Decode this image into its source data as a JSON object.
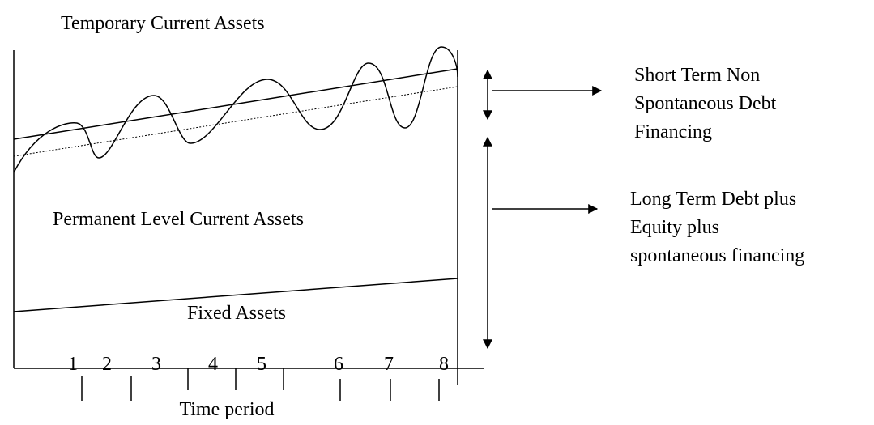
{
  "title": "Temporary Current Assets",
  "regions": {
    "permanent": "Permanent Level Current Assets",
    "fixed": "Fixed Assets"
  },
  "x_axis": {
    "labels": [
      "1",
      "2",
      "3",
      "4",
      "5",
      "6",
      "7",
      "8"
    ],
    "title": "Time period"
  },
  "annotations": [
    {
      "lines": [
        "Short Term Non",
        "Spontaneous Debt",
        "Financing"
      ]
    },
    {
      "lines": [
        "Long Term Debt plus",
        "Equity plus",
        "spontaneous financing"
      ]
    }
  ]
}
